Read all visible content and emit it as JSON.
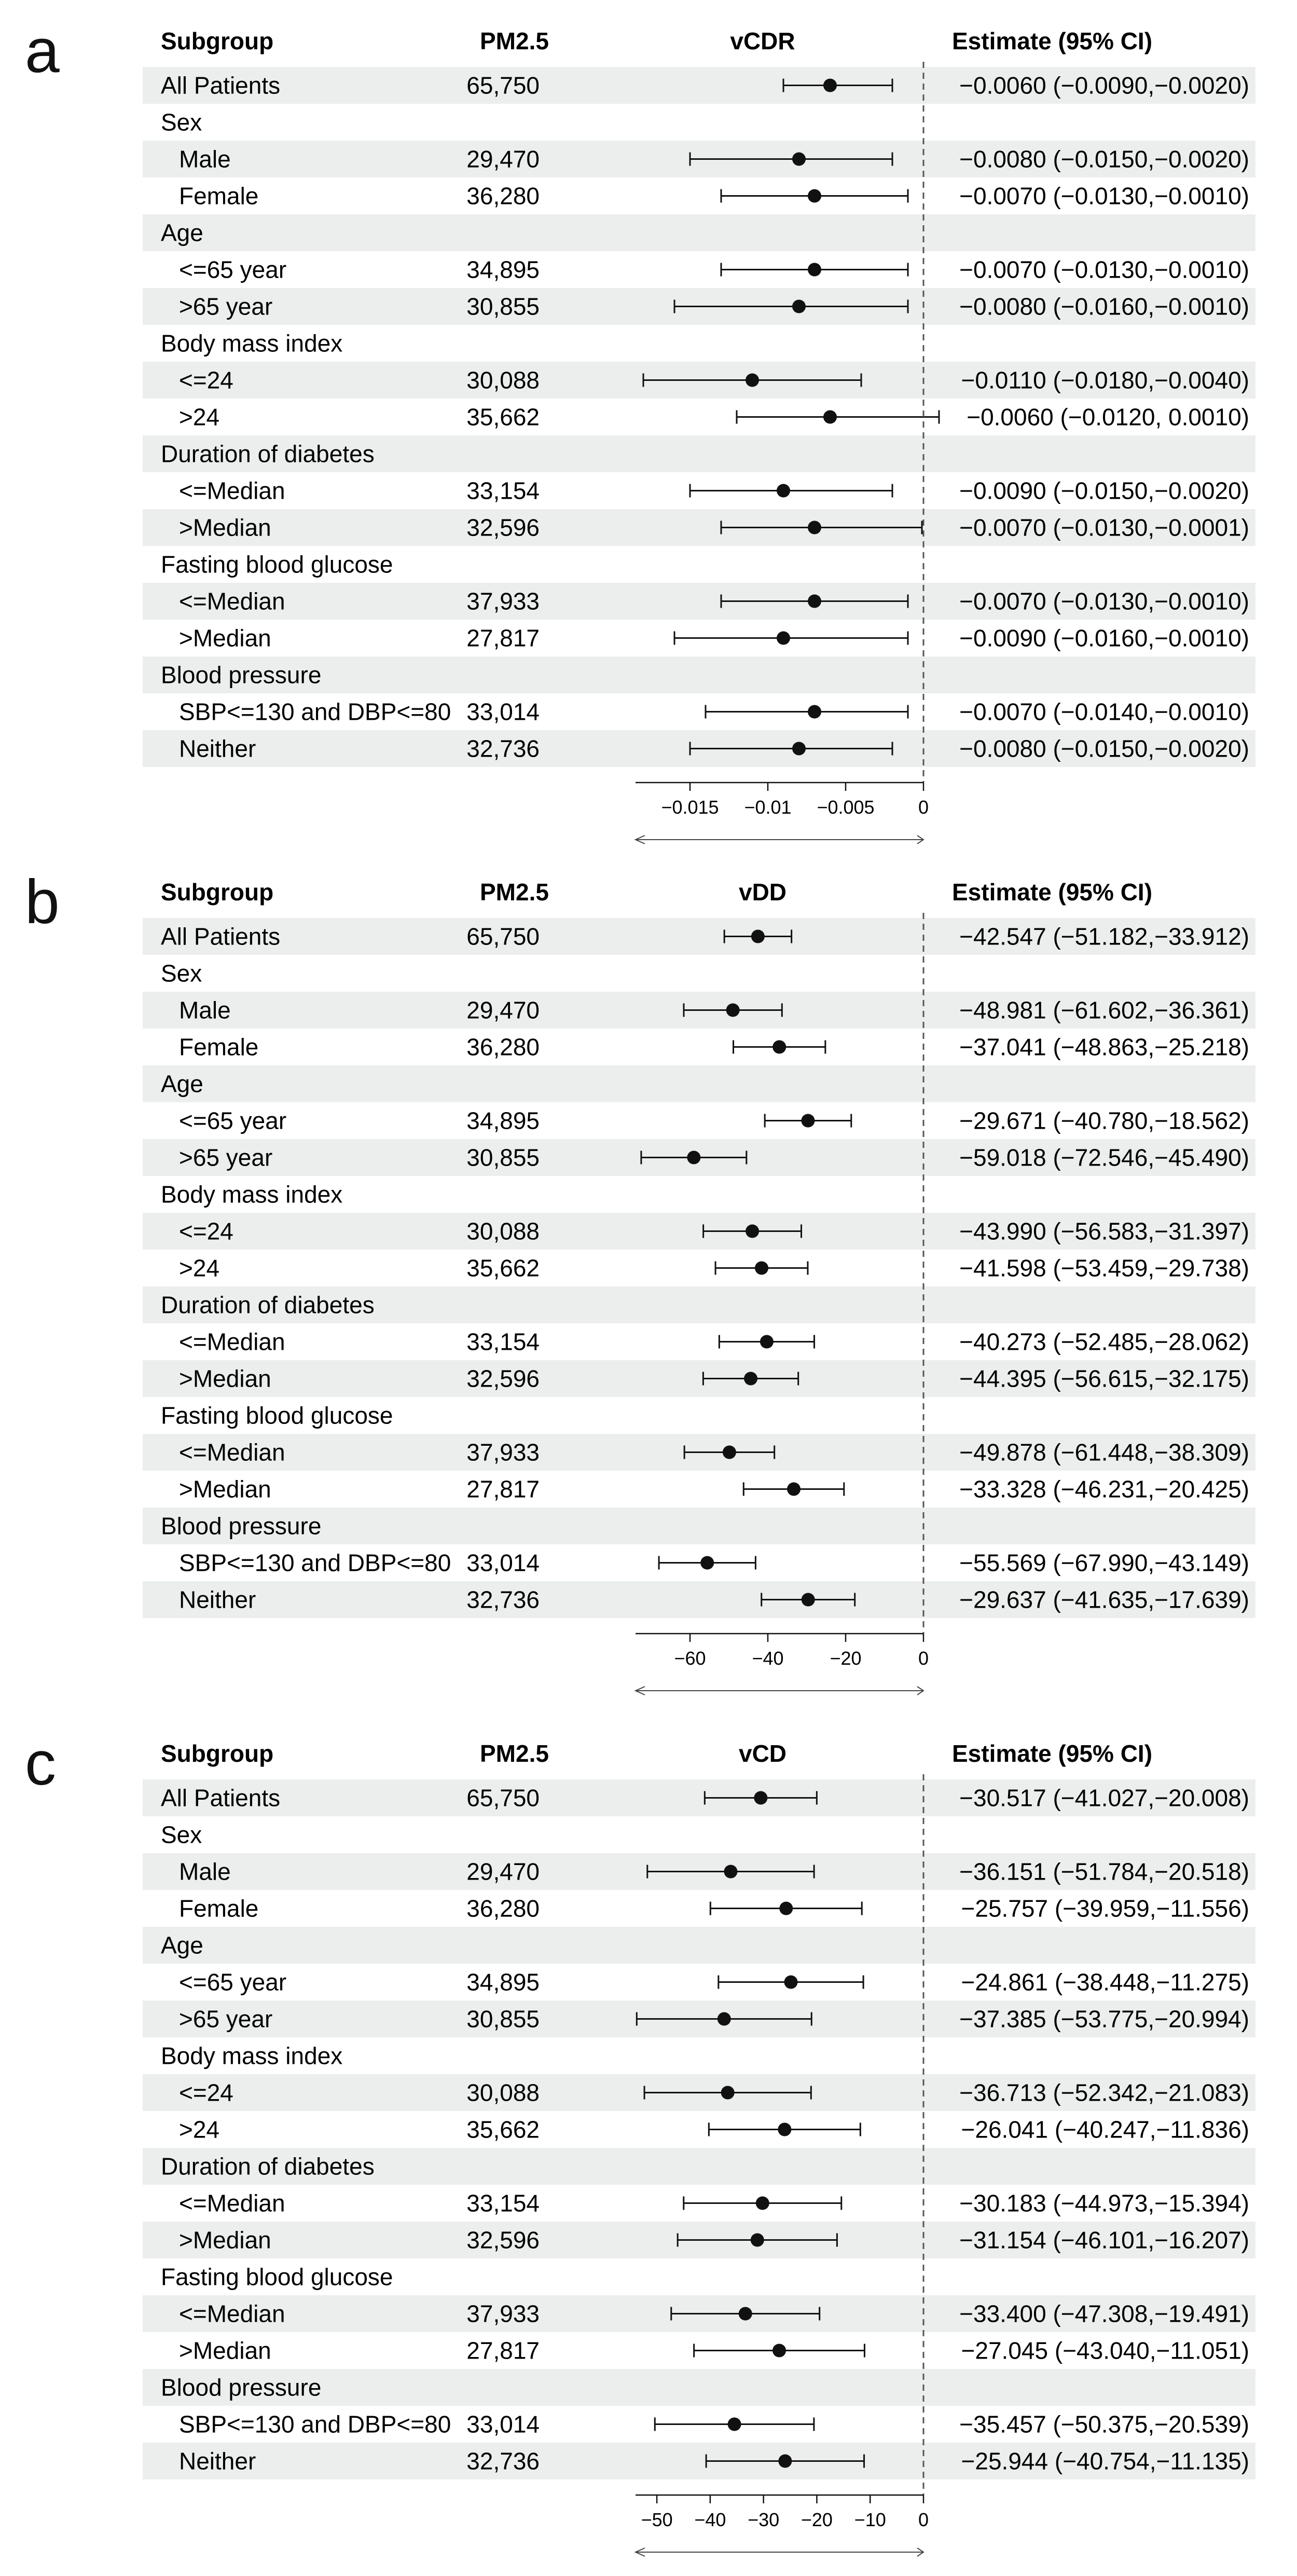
{
  "panels": [
    {
      "letter": "a",
      "header": {
        "subgroup": "Subgroup",
        "pm": "PM2.5",
        "metric": "vCDR",
        "estimate": "Estimate (95% CI)"
      },
      "rows": [
        {
          "label": "All Patients",
          "n": "65,750",
          "ci": "−0.0060 (−0.0090,−0.0020)",
          "est": -0.006,
          "lo": -0.009,
          "hi": -0.002,
          "indent": false
        },
        {
          "label": "Sex",
          "header": true
        },
        {
          "label": "Male",
          "n": "29,470",
          "ci": "−0.0080 (−0.0150,−0.0020)",
          "est": -0.008,
          "lo": -0.015,
          "hi": -0.002,
          "indent": true
        },
        {
          "label": "Female",
          "n": "36,280",
          "ci": "−0.0070 (−0.0130,−0.0010)",
          "est": -0.007,
          "lo": -0.013,
          "hi": -0.001,
          "indent": true
        },
        {
          "label": "Age",
          "header": true
        },
        {
          "label": "<=65 year",
          "n": "34,895",
          "ci": "−0.0070 (−0.0130,−0.0010)",
          "est": -0.007,
          "lo": -0.013,
          "hi": -0.001,
          "indent": true
        },
        {
          "label": ">65 year",
          "n": "30,855",
          "ci": "−0.0080 (−0.0160,−0.0010)",
          "est": -0.008,
          "lo": -0.016,
          "hi": -0.001,
          "indent": true
        },
        {
          "label": "Body mass index",
          "header": true
        },
        {
          "label": "<=24",
          "n": "30,088",
          "ci": "−0.0110 (−0.0180,−0.0040)",
          "est": -0.011,
          "lo": -0.018,
          "hi": -0.004,
          "indent": true
        },
        {
          "label": ">24",
          "n": "35,662",
          "ci": "−0.0060 (−0.0120, 0.0010)",
          "est": -0.006,
          "lo": -0.012,
          "hi": 0.001,
          "indent": true
        },
        {
          "label": "Duration of diabetes",
          "header": true
        },
        {
          "label": "<=Median",
          "n": "33,154",
          "ci": "−0.0090 (−0.0150,−0.0020)",
          "est": -0.009,
          "lo": -0.015,
          "hi": -0.002,
          "indent": true
        },
        {
          "label": ">Median",
          "n": "32,596",
          "ci": "−0.0070 (−0.0130,−0.0001)",
          "est": -0.007,
          "lo": -0.013,
          "hi": -0.0001,
          "indent": true
        },
        {
          "label": "Fasting blood glucose",
          "header": true
        },
        {
          "label": "<=Median",
          "n": "37,933",
          "ci": "−0.0070 (−0.0130,−0.0010)",
          "est": -0.007,
          "lo": -0.013,
          "hi": -0.001,
          "indent": true
        },
        {
          "label": ">Median",
          "n": "27,817",
          "ci": "−0.0090 (−0.0160,−0.0010)",
          "est": -0.009,
          "lo": -0.016,
          "hi": -0.001,
          "indent": true
        },
        {
          "label": "Blood pressure",
          "header": true
        },
        {
          "label": "SBP<=130 and DBP<=80",
          "n": "33,014",
          "ci": "−0.0070 (−0.0140,−0.0010)",
          "est": -0.007,
          "lo": -0.014,
          "hi": -0.001,
          "indent": true
        },
        {
          "label": "Neither",
          "n": "32,736",
          "ci": "−0.0080 (−0.0150,−0.0020)",
          "est": -0.008,
          "lo": -0.015,
          "hi": -0.002,
          "indent": true
        }
      ],
      "xaxis": {
        "min": -0.0185,
        "max": 0.0,
        "ticks": [
          -0.015,
          -0.01,
          -0.005,
          0
        ],
        "tick_labels": [
          "−0.015",
          "−0.01",
          "−0.005",
          "0"
        ]
      }
    },
    {
      "letter": "b",
      "header": {
        "subgroup": "Subgroup",
        "pm": "PM2.5",
        "metric": "vDD",
        "estimate": "Estimate (95% CI)"
      },
      "rows": [
        {
          "label": "All Patients",
          "n": "65,750",
          "ci": "−42.547 (−51.182,−33.912)",
          "est": -42.547,
          "lo": -51.182,
          "hi": -33.912,
          "indent": false
        },
        {
          "label": "Sex",
          "header": true
        },
        {
          "label": "Male",
          "n": "29,470",
          "ci": "−48.981 (−61.602,−36.361)",
          "est": -48.981,
          "lo": -61.602,
          "hi": -36.361,
          "indent": true
        },
        {
          "label": "Female",
          "n": "36,280",
          "ci": "−37.041 (−48.863,−25.218)",
          "est": -37.041,
          "lo": -48.863,
          "hi": -25.218,
          "indent": true
        },
        {
          "label": "Age",
          "header": true
        },
        {
          "label": "<=65 year",
          "n": "34,895",
          "ci": "−29.671 (−40.780,−18.562)",
          "est": -29.671,
          "lo": -40.78,
          "hi": -18.562,
          "indent": true
        },
        {
          "label": ">65 year",
          "n": "30,855",
          "ci": "−59.018 (−72.546,−45.490)",
          "est": -59.018,
          "lo": -72.546,
          "hi": -45.49,
          "indent": true
        },
        {
          "label": "Body mass index",
          "header": true
        },
        {
          "label": "<=24",
          "n": "30,088",
          "ci": "−43.990 (−56.583,−31.397)",
          "est": -43.99,
          "lo": -56.583,
          "hi": -31.397,
          "indent": true
        },
        {
          "label": ">24",
          "n": "35,662",
          "ci": "−41.598 (−53.459,−29.738)",
          "est": -41.598,
          "lo": -53.459,
          "hi": -29.738,
          "indent": true
        },
        {
          "label": "Duration of diabetes",
          "header": true
        },
        {
          "label": "<=Median",
          "n": "33,154",
          "ci": "−40.273 (−52.485,−28.062)",
          "est": -40.273,
          "lo": -52.485,
          "hi": -28.062,
          "indent": true
        },
        {
          "label": ">Median",
          "n": "32,596",
          "ci": "−44.395 (−56.615,−32.175)",
          "est": -44.395,
          "lo": -56.615,
          "hi": -32.175,
          "indent": true
        },
        {
          "label": "Fasting blood glucose",
          "header": true
        },
        {
          "label": "<=Median",
          "n": "37,933",
          "ci": "−49.878 (−61.448,−38.309)",
          "est": -49.878,
          "lo": -61.448,
          "hi": -38.309,
          "indent": true
        },
        {
          "label": ">Median",
          "n": "27,817",
          "ci": "−33.328 (−46.231,−20.425)",
          "est": -33.328,
          "lo": -46.231,
          "hi": -20.425,
          "indent": true
        },
        {
          "label": "Blood pressure",
          "header": true
        },
        {
          "label": "SBP<=130 and DBP<=80",
          "n": "33,014",
          "ci": "−55.569 (−67.990,−43.149)",
          "est": -55.569,
          "lo": -67.99,
          "hi": -43.149,
          "indent": true
        },
        {
          "label": "Neither",
          "n": "32,736",
          "ci": "−29.637 (−41.635,−17.639)",
          "est": -29.637,
          "lo": -41.635,
          "hi": -17.639,
          "indent": true
        }
      ],
      "xaxis": {
        "min": -74,
        "max": 0,
        "ticks": [
          -60,
          -40,
          -20,
          0
        ],
        "tick_labels": [
          "−60",
          "−40",
          "−20",
          "0"
        ]
      }
    },
    {
      "letter": "c",
      "header": {
        "subgroup": "Subgroup",
        "pm": "PM2.5",
        "metric": "vCD",
        "estimate": "Estimate (95% CI)"
      },
      "rows": [
        {
          "label": "All Patients",
          "n": "65,750",
          "ci": "−30.517 (−41.027,−20.008)",
          "est": -30.517,
          "lo": -41.027,
          "hi": -20.008,
          "indent": false
        },
        {
          "label": "Sex",
          "header": true
        },
        {
          "label": "Male",
          "n": "29,470",
          "ci": "−36.151 (−51.784,−20.518)",
          "est": -36.151,
          "lo": -51.784,
          "hi": -20.518,
          "indent": true
        },
        {
          "label": "Female",
          "n": "36,280",
          "ci": "−25.757 (−39.959,−11.556)",
          "est": -25.757,
          "lo": -39.959,
          "hi": -11.556,
          "indent": true
        },
        {
          "label": "Age",
          "header": true
        },
        {
          "label": "<=65 year",
          "n": "34,895",
          "ci": "−24.861 (−38.448,−11.275)",
          "est": -24.861,
          "lo": -38.448,
          "hi": -11.275,
          "indent": true
        },
        {
          "label": ">65 year",
          "n": "30,855",
          "ci": "−37.385 (−53.775,−20.994)",
          "est": -37.385,
          "lo": -53.775,
          "hi": -20.994,
          "indent": true
        },
        {
          "label": "Body mass index",
          "header": true
        },
        {
          "label": "<=24",
          "n": "30,088",
          "ci": "−36.713 (−52.342,−21.083)",
          "est": -36.713,
          "lo": -52.342,
          "hi": -21.083,
          "indent": true
        },
        {
          "label": ">24",
          "n": "35,662",
          "ci": "−26.041 (−40.247,−11.836)",
          "est": -26.041,
          "lo": -40.247,
          "hi": -11.836,
          "indent": true
        },
        {
          "label": "Duration of diabetes",
          "header": true
        },
        {
          "label": "<=Median",
          "n": "33,154",
          "ci": "−30.183 (−44.973,−15.394)",
          "est": -30.183,
          "lo": -44.973,
          "hi": -15.394,
          "indent": true
        },
        {
          "label": ">Median",
          "n": "32,596",
          "ci": "−31.154 (−46.101,−16.207)",
          "est": -31.154,
          "lo": -46.101,
          "hi": -16.207,
          "indent": true
        },
        {
          "label": "Fasting blood glucose",
          "header": true
        },
        {
          "label": "<=Median",
          "n": "37,933",
          "ci": "−33.400 (−47.308,−19.491)",
          "est": -33.4,
          "lo": -47.308,
          "hi": -19.491,
          "indent": true
        },
        {
          "label": ">Median",
          "n": "27,817",
          "ci": "−27.045 (−43.040,−11.051)",
          "est": -27.045,
          "lo": -43.04,
          "hi": -11.051,
          "indent": true
        },
        {
          "label": "Blood pressure",
          "header": true
        },
        {
          "label": "SBP<=130 and DBP<=80",
          "n": "33,014",
          "ci": "−35.457 (−50.375,−20.539)",
          "est": -35.457,
          "lo": -50.375,
          "hi": -20.539,
          "indent": true
        },
        {
          "label": "Neither",
          "n": "32,736",
          "ci": "−25.944 (−40.754,−11.135)",
          "est": -25.944,
          "lo": -40.754,
          "hi": -11.135,
          "indent": true
        }
      ],
      "xaxis": {
        "min": -54,
        "max": 0,
        "ticks": [
          -50,
          -40,
          -30,
          -20,
          -10,
          0
        ],
        "tick_labels": [
          "−50",
          "−40",
          "−30",
          "−20",
          "−10",
          "0"
        ]
      }
    }
  ],
  "chart_data": [
    {
      "type": "forest",
      "title": "vCDR",
      "xlabel": "",
      "ylabel": "Subgroup",
      "xlim": [
        -0.0185,
        0
      ],
      "reference_line": 0,
      "categories": [
        "All Patients",
        "Male",
        "Female",
        "<=65 year",
        ">65 year",
        "<=24",
        ">24",
        "<=Median (duration)",
        ">Median (duration)",
        "<=Median (FBG)",
        ">Median (FBG)",
        "SBP<=130 and DBP<=80",
        "Neither"
      ],
      "values": [
        -0.006,
        -0.008,
        -0.007,
        -0.007,
        -0.008,
        -0.011,
        -0.006,
        -0.009,
        -0.007,
        -0.007,
        -0.009,
        -0.007,
        -0.008
      ]
    },
    {
      "type": "forest",
      "title": "vDD",
      "xlabel": "",
      "ylabel": "Subgroup",
      "xlim": [
        -74,
        0
      ],
      "reference_line": 0,
      "categories": [
        "All Patients",
        "Male",
        "Female",
        "<=65 year",
        ">65 year",
        "<=24",
        ">24",
        "<=Median (duration)",
        ">Median (duration)",
        "<=Median (FBG)",
        ">Median (FBG)",
        "SBP<=130 and DBP<=80",
        "Neither"
      ],
      "values": [
        -42.547,
        -48.981,
        -37.041,
        -29.671,
        -59.018,
        -43.99,
        -41.598,
        -40.273,
        -44.395,
        -49.878,
        -33.328,
        -55.569,
        -29.637
      ]
    },
    {
      "type": "forest",
      "title": "vCD",
      "xlabel": "",
      "ylabel": "Subgroup",
      "xlim": [
        -54,
        0
      ],
      "reference_line": 0,
      "categories": [
        "All Patients",
        "Male",
        "Female",
        "<=65 year",
        ">65 year",
        "<=24",
        ">24",
        "<=Median (duration)",
        ">Median (duration)",
        "<=Median (FBG)",
        ">Median (FBG)",
        "SBP<=130 and DBP<=80",
        "Neither"
      ],
      "values": [
        -30.517,
        -36.151,
        -25.757,
        -24.861,
        -37.385,
        -36.713,
        -26.041,
        -30.183,
        -31.154,
        -33.4,
        -27.045,
        -35.457,
        -25.944
      ]
    }
  ]
}
